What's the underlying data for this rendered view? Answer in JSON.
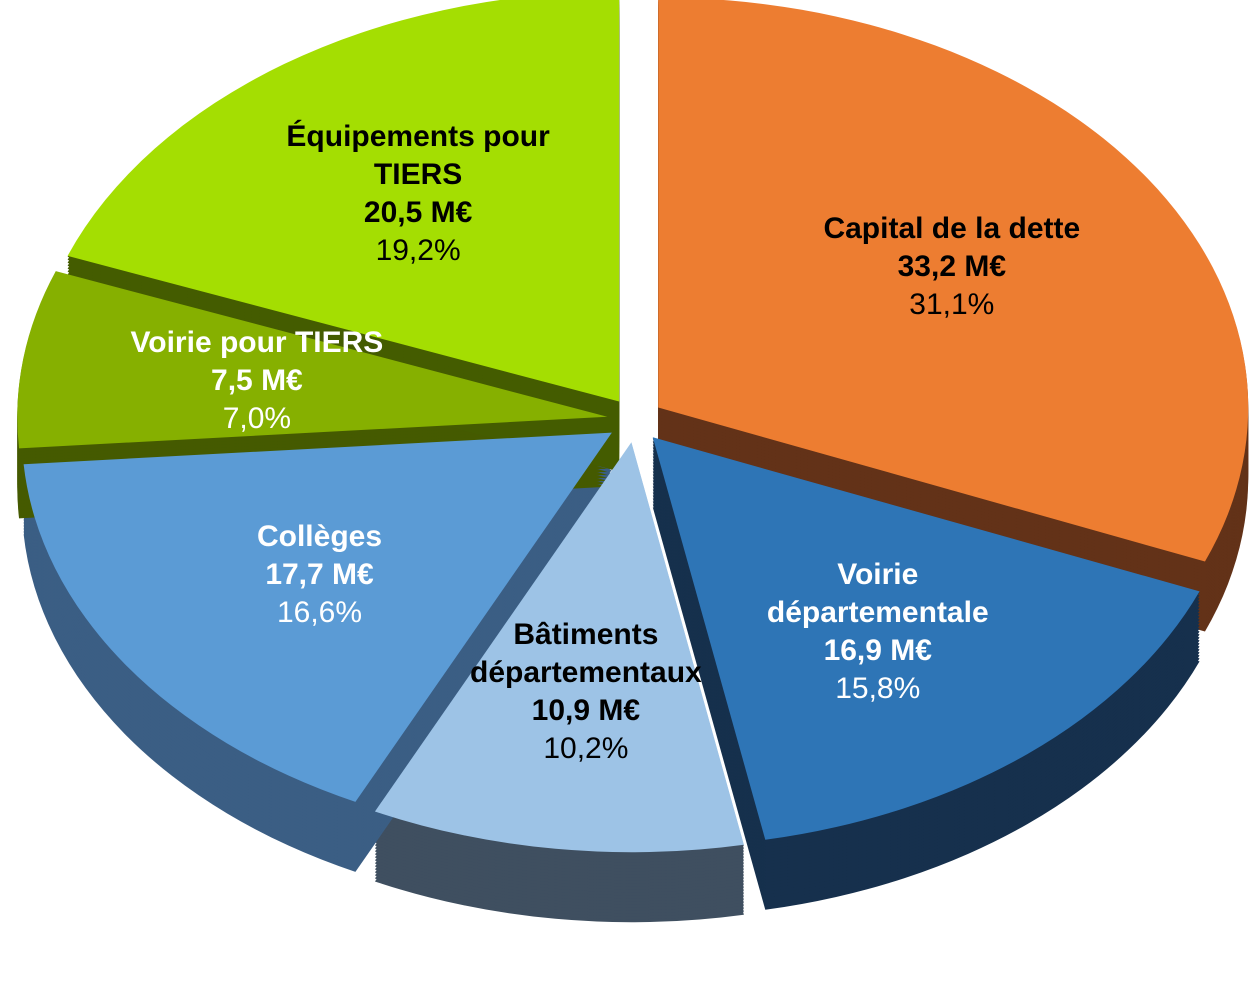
{
  "chart_data": {
    "type": "pie",
    "categories": [
      "Capital de la dette",
      "Voirie départementale",
      "Bâtiments départementaux",
      "Collèges",
      "Voirie pour TIERS",
      "Équipements pour TIERS"
    ],
    "values": [
      33.2,
      16.9,
      10.9,
      17.7,
      7.5,
      20.5
    ],
    "value_labels": [
      "33,2 M€",
      "16,9 M€",
      "10,9 M€",
      "17,7 M€",
      "7,5 M€",
      "20,5 M€"
    ],
    "percentages": [
      31.1,
      15.8,
      10.2,
      16.6,
      7.0,
      19.2
    ],
    "percentage_labels": [
      "31,1%",
      "15,8%",
      "10,2%",
      "16,6%",
      "7,0%",
      "19,2%"
    ],
    "colors": [
      "#ED7D31",
      "#2E75B6",
      "#9DC3E6",
      "#5B9BD5",
      "#86B000",
      "#A4DE02"
    ],
    "side_colors": [
      "#633218",
      "#16304D",
      "#3F4F60",
      "#3B5E84",
      "#455A00",
      "#445C00"
    ],
    "label_colors": [
      "#000000",
      "#ffffff",
      "#000000",
      "#ffffff",
      "#ffffff",
      "#000000"
    ]
  }
}
